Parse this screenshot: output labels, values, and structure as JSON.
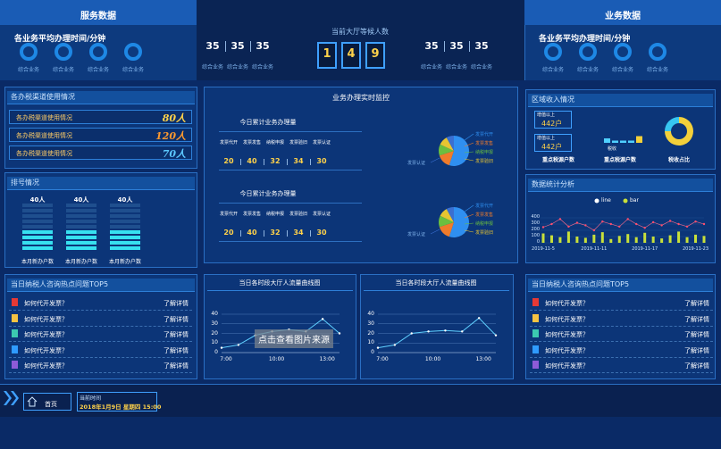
{
  "header": {
    "left_title": "服务数据",
    "center_title": "当前大厅等候人数",
    "right_title": "业务数据"
  },
  "service": {
    "title": "各业务平均办理时间/分钟",
    "items": [
      "综合业务",
      "综合业务",
      "综合业务",
      "综合业务"
    ]
  },
  "business": {
    "title": "各业务平均办理时间/分钟",
    "items": [
      "综合业务",
      "综合业务",
      "综合业务",
      "综合业务"
    ]
  },
  "waiting": {
    "left_counts": [
      "35",
      "35",
      "35"
    ],
    "left_labels": [
      "综合业务",
      "综合业务",
      "综合业务"
    ],
    "digits": [
      "1",
      "4",
      "9"
    ],
    "right_counts": [
      "35",
      "35",
      "35"
    ],
    "right_labels": [
      "综合业务",
      "综合业务",
      "综合业务"
    ]
  },
  "channels": {
    "title": "各办税渠道使用情况",
    "rows": [
      {
        "name": "各办税渠道使用情况",
        "value": "80人",
        "color": "#ffd24a"
      },
      {
        "name": "各办税渠道使用情况",
        "value": "120人",
        "color": "#ff9a2e"
      },
      {
        "name": "各办税渠道使用情况",
        "value": "70人",
        "color": "#5cc8ff"
      }
    ]
  },
  "queue": {
    "title": "排号情况",
    "columns": [
      {
        "value": "40人",
        "label": "本月新办户数"
      },
      {
        "value": "40人",
        "label": "本月新办户数"
      },
      {
        "value": "40人",
        "label": "本月新办户数"
      }
    ]
  },
  "monitor": {
    "title": "业务办理实时监控",
    "blocks": [
      {
        "title": "今日累计业务办理量",
        "labels": [
          "发票代开",
          "发票发售",
          "纳税申报",
          "发票验旧",
          "发票认证"
        ],
        "values": [
          "20",
          "40",
          "32",
          "34",
          "30"
        ],
        "pie": {
          "labels": [
            "发票代开",
            "发票发售",
            "纳税申报",
            "发票验旧",
            "发票认证"
          ],
          "values": [
            55,
            15,
            12,
            10,
            8
          ],
          "colors": [
            "#2f8ff0",
            "#f07b2b",
            "#6bbf3f",
            "#e8c531",
            "#3a6fd1"
          ]
        }
      },
      {
        "title": "今日累计业务办理量",
        "labels": [
          "发票代开",
          "发票发售",
          "纳税申报",
          "发票验旧",
          "发票认证"
        ],
        "values": [
          "20",
          "40",
          "32",
          "34",
          "30"
        ],
        "pie": {
          "labels": [
            "发票代开",
            "发票发售",
            "纳税申报",
            "发票验旧",
            "发票认证"
          ],
          "values": [
            55,
            15,
            12,
            10,
            8
          ],
          "colors": [
            "#2f8ff0",
            "#f07b2b",
            "#6bbf3f",
            "#e8c531",
            "#3a6fd1"
          ]
        }
      }
    ]
  },
  "region": {
    "title": "区域收入情况",
    "boxes": [
      {
        "label": "增值以上",
        "value": "442户"
      },
      {
        "label": "增值以上",
        "value": "442户"
      }
    ],
    "bar_label": "税收",
    "mini_bars": [
      2,
      1,
      1,
      1,
      3
    ],
    "mini_colors": [
      "#4fd0ff",
      "#4fd0ff",
      "#4fd0ff",
      "#4fd0ff",
      "#f3d03a"
    ],
    "captions": [
      "重点税源户数",
      "重点税源户数",
      "税收占比"
    ],
    "ring": {
      "values": [
        75,
        25
      ],
      "colors": [
        "#f3d03a",
        "#37c6f0"
      ]
    }
  },
  "stats": {
    "title": "数据统计分析",
    "legend": [
      {
        "name": "line",
        "color": "#ffffff"
      },
      {
        "name": "bar",
        "color": "#c8e03a"
      }
    ],
    "x": [
      "2019-11-5",
      null,
      null,
      null,
      null,
      null,
      "2019-11-11",
      null,
      null,
      null,
      null,
      null,
      "2019-11-17",
      null,
      null,
      null,
      null,
      null,
      "2019-11-23",
      null
    ],
    "line": [
      250,
      300,
      380,
      260,
      320,
      280,
      200,
      340,
      300,
      260,
      380,
      300,
      240,
      330,
      280,
      350,
      300,
      260,
      340,
      300
    ],
    "bar": [
      150,
      120,
      90,
      180,
      100,
      80,
      130,
      170,
      60,
      110,
      140,
      90,
      160,
      100,
      70,
      120,
      180,
      90,
      130,
      110
    ],
    "ylim": [
      0,
      400
    ],
    "yticks": [
      0,
      100,
      200,
      300,
      400
    ]
  },
  "flow": [
    {
      "title": "当日各时段大厅人流量曲线图",
      "x": [
        "7:00",
        null,
        null,
        "10:00",
        null,
        null,
        "13:00",
        null
      ],
      "values": [
        5,
        8,
        18,
        22,
        24,
        22,
        35,
        20
      ],
      "ylim": [
        0,
        40
      ],
      "yticks": [
        0,
        10,
        20,
        30,
        40
      ]
    },
    {
      "title": "当日各时段大厅人流量曲线图",
      "x": [
        "7:00",
        null,
        null,
        "10:00",
        null,
        null,
        "13:00",
        null
      ],
      "values": [
        5,
        8,
        20,
        22,
        23,
        22,
        36,
        18
      ],
      "ylim": [
        0,
        40
      ],
      "yticks": [
        0,
        10,
        20,
        30,
        40
      ]
    }
  ],
  "hot_left": {
    "title": "当日纳税人咨询热点问题TOP5",
    "rows": [
      {
        "question": "如何代开发票？",
        "link": "了解详情"
      },
      {
        "question": "如何代开发票？",
        "link": "了解详情"
      },
      {
        "question": "如何代开发票？",
        "link": "了解详情"
      },
      {
        "question": "如何代开发票？",
        "link": "了解详情"
      },
      {
        "question": "如何代开发票？",
        "link": "了解详情"
      }
    ]
  },
  "hot_right": {
    "title": "当日纳税人咨询热点问题TOP5",
    "rows": [
      {
        "question": "如何代开发票？",
        "link": "了解详情"
      },
      {
        "question": "如何代开发票？",
        "link": "了解详情"
      },
      {
        "question": "如何代开发票？",
        "link": "了解详情"
      },
      {
        "question": "如何代开发票？",
        "link": "了解详情"
      },
      {
        "question": "如何代开发票？",
        "link": "了解详情"
      }
    ]
  },
  "watermark": "点击查看图片来源",
  "footer": {
    "home": "首页",
    "time_label": "当前时间",
    "time": "2018年1月9日 星期四 15:00"
  }
}
